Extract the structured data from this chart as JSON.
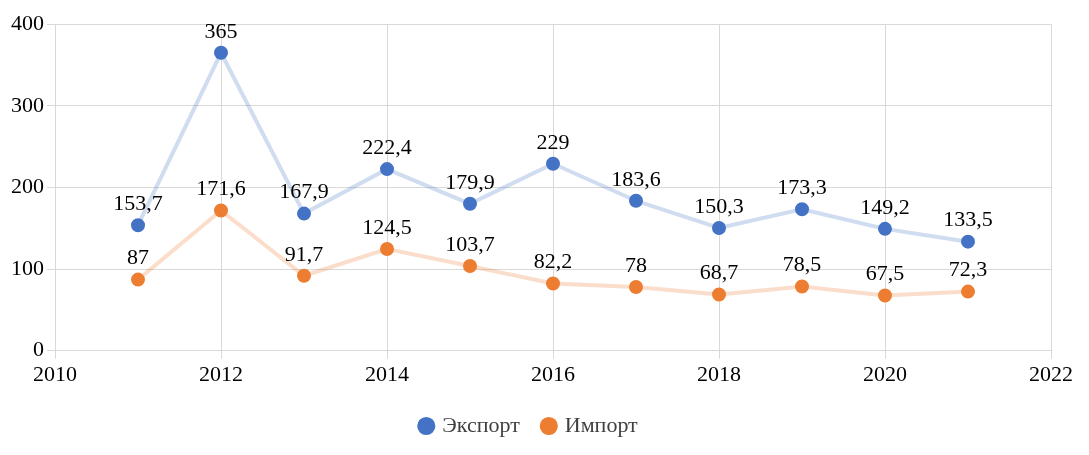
{
  "chart_data": {
    "type": "line",
    "x": [
      2011,
      2012,
      2013,
      2014,
      2015,
      2016,
      2017,
      2018,
      2019,
      2020,
      2021
    ],
    "series": [
      {
        "name": "Экспорт",
        "color": "#4472c4",
        "values": [
          153.7,
          365,
          167.9,
          222.4,
          179.9,
          229,
          183.6,
          150.3,
          173.3,
          149.2,
          133.5
        ],
        "value_labels": [
          "153,7",
          "365",
          "167,9",
          "222,4",
          "179,9",
          "229",
          "183,6",
          "150,3",
          "173,3",
          "149,2",
          "133,5"
        ]
      },
      {
        "name": "Импорт",
        "color": "#ed7d31",
        "values": [
          87,
          171.6,
          91.7,
          124.5,
          103.7,
          82.2,
          78,
          68.7,
          78.5,
          67.5,
          72.3
        ],
        "value_labels": [
          "87",
          "171,6",
          "91,7",
          "124,5",
          "103,7",
          "82,2",
          "78",
          "68,7",
          "78,5",
          "67,5",
          "72,3"
        ]
      }
    ],
    "xlim": [
      2010,
      2022
    ],
    "xticks": [
      2010,
      2012,
      2014,
      2016,
      2018,
      2020,
      2022
    ],
    "ylim": [
      0,
      400
    ],
    "yticks": [
      0,
      100,
      200,
      300,
      400
    ],
    "grid": true,
    "legend": "bottom",
    "marker": "circle",
    "line_style": "solid"
  }
}
